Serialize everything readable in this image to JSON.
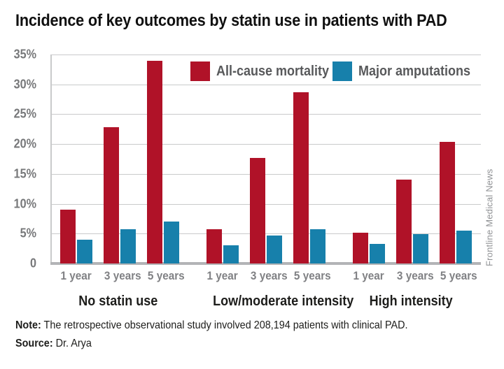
{
  "title": "Incidence of key outcomes by statin use in patients with PAD",
  "credit": "Frontline Medical News",
  "footer": {
    "note_label": "Note:",
    "note_text": " The retrospective observational study involved 208,194 patients with clinical PAD.",
    "source_label": "Source:",
    "source_text": " Dr. Arya"
  },
  "colors": {
    "mortality_red": "#b01228",
    "amputation_blue": "#1780ab",
    "gridline": "#c9cacb",
    "axis": "#b3b4b6"
  },
  "chart_data": {
    "type": "bar",
    "title": "Incidence of key outcomes by statin use in patients with PAD",
    "groups": [
      "No statin use",
      "Low/moderate intensity",
      "High intensity"
    ],
    "categories": [
      "1 year",
      "3 years",
      "5 years"
    ],
    "series": [
      {
        "name": "All-cause mortality",
        "color": "#b01228",
        "values": [
          [
            9.0,
            22.8,
            33.9
          ],
          [
            5.7,
            17.7,
            28.7
          ],
          [
            5.2,
            14.1,
            20.4
          ]
        ]
      },
      {
        "name": "Major amputations",
        "color": "#1780ab",
        "values": [
          [
            4.0,
            5.8,
            7.0
          ],
          [
            3.1,
            4.7,
            5.7
          ],
          [
            3.3,
            4.9,
            5.5
          ]
        ]
      }
    ],
    "ylim": [
      0,
      35
    ],
    "yticks": [
      "35%",
      "30%",
      "25%",
      "20%",
      "15%",
      "10%",
      "5%",
      "0"
    ],
    "grid": true,
    "legend_position": "top-inside",
    "unit": "%"
  }
}
